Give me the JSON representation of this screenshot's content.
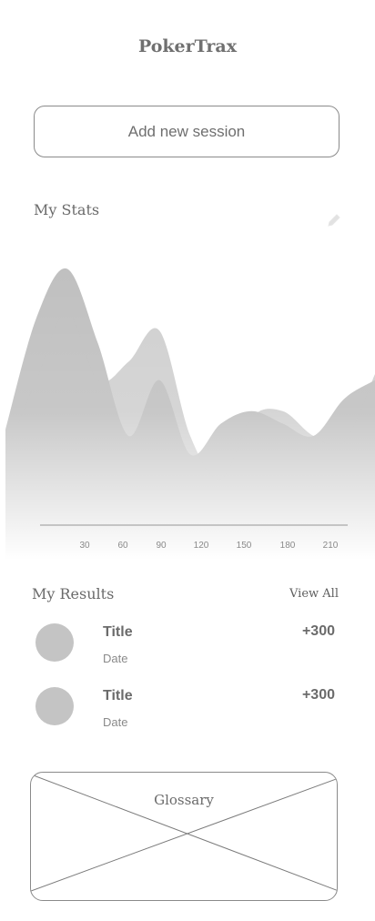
{
  "app": {
    "title": "PokerTrax"
  },
  "actions": {
    "add_session_label": "Add new session"
  },
  "stats": {
    "section_title": "My Stats",
    "edit_icon": "pencil-icon"
  },
  "chart_data": {
    "type": "area",
    "x_ticks": [
      30,
      60,
      90,
      120,
      150,
      180,
      210
    ],
    "x": [
      0,
      20,
      40,
      60,
      80,
      100,
      120,
      140,
      160,
      180,
      200,
      220,
      240
    ],
    "series": [
      {
        "values": [
          42,
          78,
          94,
          70,
          40,
          58,
          34,
          44,
          48,
          44,
          40,
          52,
          58
        ]
      },
      {
        "values": [
          34,
          58,
          80,
          58,
          64,
          74,
          40,
          26,
          46,
          48,
          40,
          38,
          60
        ]
      }
    ],
    "ylim": [
      0,
      100
    ],
    "xlim": [
      0,
      240
    ],
    "grid": false,
    "colors": {
      "series": [
        "#a8a8a8",
        "#bdbdbd"
      ],
      "axis": "#b5b5b5"
    }
  },
  "results": {
    "section_title": "My Results",
    "view_all_label": "View All",
    "items": [
      {
        "title": "Title",
        "date": "Date",
        "score": "+300"
      },
      {
        "title": "Title",
        "date": "Date",
        "score": "+300"
      }
    ]
  },
  "glossary": {
    "label": "Glossary"
  },
  "colors": {
    "text": "#6b6b6b",
    "border": "#8a8a8a",
    "avatar": "#c4c4c4"
  }
}
